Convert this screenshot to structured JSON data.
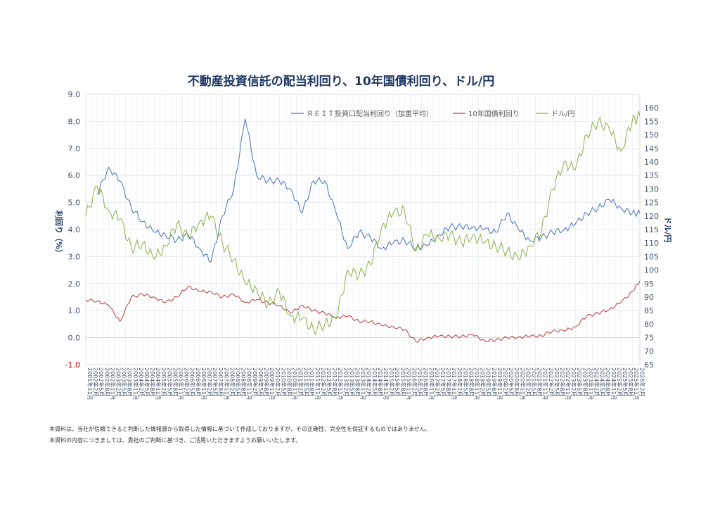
{
  "chart_data": {
    "type": "line",
    "title": "不動産投資信託の配当利回り、10年国債利回り、ドル/円",
    "ylabel_left": "利回り（%）",
    "ylabel_right": "ドル/円",
    "ylim_left": [
      -1.0,
      9.0
    ],
    "ylim_right": [
      65,
      165
    ],
    "yticks_left": [
      "9.0",
      "8.0",
      "7.0",
      "6.0",
      "5.0",
      "4.0",
      "3.0",
      "2.0",
      "1.0",
      "0.0",
      "-1.0"
    ],
    "yticks_right": [
      "160",
      "155",
      "150",
      "145",
      "140",
      "135",
      "130",
      "125",
      "120",
      "115",
      "110",
      "105",
      "100",
      "95",
      "90",
      "85",
      "80",
      "75",
      "70",
      "65"
    ],
    "grid": true,
    "legend_position": "top",
    "x_start": "2001年11月",
    "x_end": "2026年3月",
    "x": [
      "2001-11",
      "2002-05",
      "2002-11",
      "2003-05",
      "2003-11",
      "2004-05",
      "2004-11",
      "2005-05",
      "2005-11",
      "2006-05",
      "2006-11",
      "2007-05",
      "2007-11",
      "2008-05",
      "2008-11",
      "2009-05",
      "2009-11",
      "2010-05",
      "2010-11",
      "2011-05",
      "2011-11",
      "2012-05",
      "2012-11",
      "2013-05",
      "2013-11",
      "2014-05",
      "2014-11",
      "2015-05",
      "2015-11",
      "2016-05",
      "2016-11",
      "2017-05",
      "2017-11",
      "2018-05",
      "2018-11",
      "2019-05",
      "2019-11",
      "2020-05",
      "2020-11",
      "2021-05",
      "2021-11",
      "2022-05",
      "2022-11",
      "2023-05",
      "2023-11",
      "2024-05",
      "2024-11",
      "2025-05",
      "2025-11",
      "2026-03"
    ],
    "series": [
      {
        "name": "ＲＥＩＴ投資口配当利回り（加重平均）",
        "axis": "left",
        "color": "#4a72b8",
        "values": [
          null,
          5.3,
          6.3,
          5.8,
          4.8,
          4.3,
          3.9,
          3.8,
          3.6,
          3.8,
          3.3,
          2.8,
          4.5,
          5.5,
          8.1,
          6.0,
          5.8,
          5.8,
          5.5,
          4.6,
          5.8,
          5.8,
          4.6,
          3.3,
          3.9,
          3.7,
          3.3,
          3.5,
          3.6,
          3.3,
          3.4,
          3.8,
          4.1,
          4.1,
          4.1,
          4.0,
          3.9,
          4.6,
          4.0,
          3.6,
          3.7,
          3.9,
          4.0,
          4.2,
          4.6,
          4.8,
          5.1,
          4.8,
          4.6,
          4.6
        ]
      },
      {
        "name": "10年国債利回り",
        "axis": "left",
        "color": "#b83c3c",
        "values": [
          1.4,
          1.35,
          1.2,
          0.6,
          1.5,
          1.6,
          1.5,
          1.3,
          1.5,
          1.9,
          1.7,
          1.7,
          1.5,
          1.6,
          1.3,
          1.4,
          1.3,
          1.2,
          0.9,
          1.2,
          1.0,
          0.9,
          0.75,
          0.8,
          0.6,
          0.6,
          0.45,
          0.4,
          0.3,
          -0.15,
          0.0,
          0.05,
          0.05,
          0.05,
          0.1,
          -0.1,
          -0.1,
          0.0,
          0.02,
          0.05,
          0.07,
          0.25,
          0.25,
          0.4,
          0.8,
          0.9,
          1.05,
          1.3,
          1.7,
          2.1
        ]
      },
      {
        "name": "ドル/円",
        "axis": "right",
        "color": "#8bb04a",
        "values": [
          120,
          131,
          122,
          119,
          108,
          110,
          104,
          109,
          117,
          112,
          118,
          120,
          110,
          104,
          95,
          93,
          87,
          92,
          83,
          82,
          78,
          80,
          82,
          100,
          98,
          102,
          116,
          121,
          122,
          107,
          113,
          112,
          113,
          110,
          113,
          110,
          109,
          107,
          104,
          109,
          114,
          130,
          140,
          137,
          150,
          155,
          152,
          144,
          155,
          157
        ]
      }
    ]
  },
  "footnotes": [
    "本資料は、当社が信頼できると判断した情報源から取得した情報に基づいて作成しておりますが、その正確性、完全性を保証するものではありません。",
    "本資料の内容につきましては、貴社のご判断に基づき、ご活用いただきますようお願いいたします。"
  ]
}
